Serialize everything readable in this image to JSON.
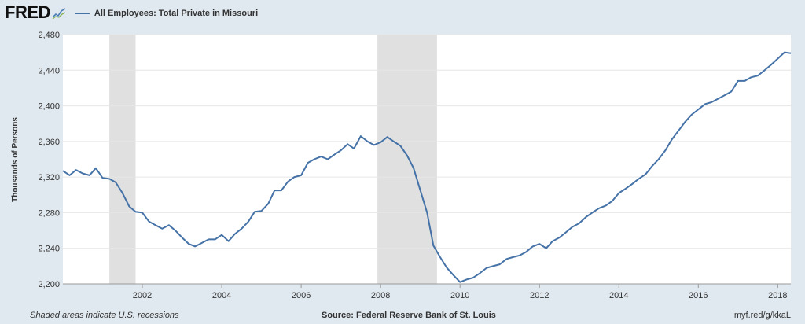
{
  "header": {
    "logo_text": "FRED",
    "logo_icon": "fred-chart-icon",
    "legend_label": "All Employees: Total Private in Missouri"
  },
  "footer": {
    "note": "Shaded areas indicate U.S. recessions",
    "source": "Source: Federal Reserve Bank of St. Louis",
    "link": "myf.red/g/kkaL"
  },
  "colors": {
    "line": "#4572a7",
    "recession": "#e0e0e0",
    "plot_bg": "#ffffff",
    "page_bg": "#e1e9f0",
    "grid": "#e6e6e6"
  },
  "chart_data": {
    "type": "line",
    "title": "",
    "xlabel": "",
    "ylabel": "Thousands of Persons",
    "xlim": [
      2000.0,
      2018.33
    ],
    "ylim": [
      2200,
      2480
    ],
    "y_ticks": [
      2200,
      2240,
      2280,
      2320,
      2360,
      2400,
      2440,
      2480
    ],
    "y_tick_labels": [
      "2,200",
      "2,240",
      "2,280",
      "2,320",
      "2,360",
      "2,400",
      "2,440",
      "2,480"
    ],
    "x_ticks": [
      2002,
      2004,
      2006,
      2008,
      2010,
      2012,
      2014,
      2016,
      2018
    ],
    "x_tick_labels": [
      "2002",
      "2004",
      "2006",
      "2008",
      "2010",
      "2012",
      "2014",
      "2016",
      "2018"
    ],
    "grid": true,
    "recessions": [
      [
        2001.17,
        2001.83
      ],
      [
        2007.92,
        2009.42
      ]
    ],
    "series": [
      {
        "name": "All Employees: Total Private in Missouri",
        "x": [
          2000.0,
          2000.17,
          2000.33,
          2000.5,
          2000.67,
          2000.83,
          2001.0,
          2001.17,
          2001.33,
          2001.5,
          2001.67,
          2001.83,
          2002.0,
          2002.17,
          2002.33,
          2002.5,
          2002.67,
          2002.83,
          2003.0,
          2003.17,
          2003.33,
          2003.5,
          2003.67,
          2003.83,
          2004.0,
          2004.17,
          2004.33,
          2004.5,
          2004.67,
          2004.83,
          2005.0,
          2005.17,
          2005.33,
          2005.5,
          2005.67,
          2005.83,
          2006.0,
          2006.17,
          2006.33,
          2006.5,
          2006.67,
          2006.83,
          2007.0,
          2007.17,
          2007.33,
          2007.5,
          2007.67,
          2007.83,
          2008.0,
          2008.17,
          2008.33,
          2008.5,
          2008.67,
          2008.83,
          2009.0,
          2009.17,
          2009.33,
          2009.5,
          2009.67,
          2009.83,
          2010.0,
          2010.17,
          2010.33,
          2010.5,
          2010.67,
          2010.83,
          2011.0,
          2011.17,
          2011.33,
          2011.5,
          2011.67,
          2011.83,
          2012.0,
          2012.17,
          2012.33,
          2012.5,
          2012.67,
          2012.83,
          2013.0,
          2013.17,
          2013.33,
          2013.5,
          2013.67,
          2013.83,
          2014.0,
          2014.17,
          2014.33,
          2014.5,
          2014.67,
          2014.83,
          2015.0,
          2015.17,
          2015.33,
          2015.5,
          2015.67,
          2015.83,
          2016.0,
          2016.17,
          2016.33,
          2016.5,
          2016.67,
          2016.83,
          2017.0,
          2017.17,
          2017.33,
          2017.5,
          2017.67,
          2017.83,
          2018.0,
          2018.17,
          2018.33
        ],
        "values": [
          2327,
          2322,
          2328,
          2324,
          2322,
          2330,
          2319,
          2318,
          2314,
          2302,
          2287,
          2281,
          2280,
          2270,
          2266,
          2262,
          2266,
          2260,
          2252,
          2245,
          2242,
          2246,
          2250,
          2250,
          2255,
          2248,
          2256,
          2262,
          2270,
          2281,
          2282,
          2290,
          2305,
          2305,
          2315,
          2320,
          2322,
          2336,
          2340,
          2343,
          2340,
          2345,
          2350,
          2357,
          2352,
          2366,
          2360,
          2356,
          2359,
          2365,
          2360,
          2355,
          2344,
          2330,
          2305,
          2280,
          2243,
          2230,
          2218,
          2210,
          2202,
          2205,
          2207,
          2212,
          2218,
          2220,
          2222,
          2228,
          2230,
          2232,
          2236,
          2242,
          2245,
          2240,
          2248,
          2252,
          2258,
          2264,
          2268,
          2275,
          2280,
          2285,
          2288,
          2293,
          2302,
          2307,
          2312,
          2318,
          2323,
          2332,
          2340,
          2350,
          2362,
          2372,
          2382,
          2390,
          2396,
          2402,
          2404,
          2408,
          2412,
          2416,
          2428,
          2428,
          2432,
          2434,
          2440,
          2446,
          2453,
          2460,
          2459
        ]
      }
    ]
  }
}
